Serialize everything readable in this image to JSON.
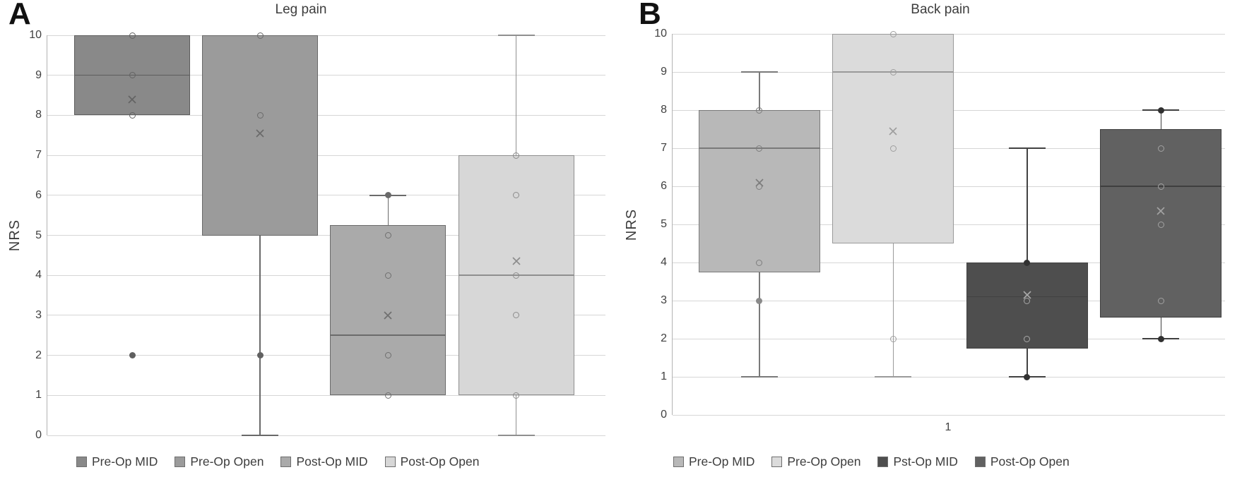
{
  "chart_data": [
    {
      "type": "box",
      "panel_label": "A",
      "title": "Leg pain",
      "ylabel": "NRS",
      "ylim": [
        0,
        10
      ],
      "yticks": [
        0,
        1,
        2,
        3,
        4,
        5,
        6,
        7,
        8,
        9,
        10
      ],
      "x_tick_labels": [],
      "grid": true,
      "grid_color": "#d6d6d6",
      "axis_color": "#b3b3b3",
      "text_color": "#404040",
      "legend_position": "bottom",
      "series": [
        {
          "name": "Pre-Op MID",
          "fill": "#898989",
          "line_color": "#5d5d5d",
          "marker_color": "#636363",
          "point_color": "#5f5f5f",
          "q1": 8,
          "median": 9,
          "q3": 10,
          "mean": 8.4,
          "whisker_low": null,
          "whisker_high": null,
          "points_open": [
            10,
            9,
            8
          ],
          "points_filled": [
            2
          ]
        },
        {
          "name": "Pre-Op Open",
          "fill": "#9b9b9b",
          "line_color": "#696969",
          "marker_color": "#6a6a6a",
          "point_color": "#616161",
          "q1": 5,
          "median": null,
          "q3": 10,
          "mean": 7.55,
          "whisker_low": 0,
          "whisker_high": null,
          "points_open": [
            10,
            8
          ],
          "points_filled": [
            2
          ]
        },
        {
          "name": "Post-Op MID",
          "fill": "#aaaaaa",
          "line_color": "#6b6b6b",
          "marker_color": "#6f6f6f",
          "point_color": "#6a6a6a",
          "q1": 1,
          "median": 2.5,
          "q3": 5.25,
          "mean": 3.0,
          "whisker_low": null,
          "whisker_high": 6,
          "points_open": [
            5,
            4,
            2,
            1
          ],
          "points_filled": [
            6
          ]
        },
        {
          "name": "Post-Op Open",
          "fill": "#d7d7d7",
          "line_color": "#8f8f8f",
          "marker_color": "#8c8c8c",
          "point_color": "#7a7a7a",
          "q1": 1,
          "median": 4,
          "q3": 7,
          "mean": 4.35,
          "whisker_low": 0,
          "whisker_high": 10,
          "points_open": [
            7,
            6,
            4,
            3,
            1
          ],
          "points_filled": []
        }
      ]
    },
    {
      "type": "box",
      "panel_label": "B",
      "title": "Back pain",
      "ylabel": "NRS",
      "ylim": [
        0,
        10
      ],
      "yticks": [
        0,
        1,
        2,
        3,
        4,
        5,
        6,
        7,
        8,
        9,
        10
      ],
      "x_tick_labels": [
        "1"
      ],
      "grid": true,
      "grid_color": "#d6d6d6",
      "axis_color": "#b3b3b3",
      "text_color": "#404040",
      "legend_position": "bottom",
      "series": [
        {
          "name": "Pre-Op MID",
          "fill": "#b8b8b8",
          "line_color": "#7a7a7a",
          "marker_color": "#7d7d7d",
          "point_color": "#8a8a8a",
          "q1": 3.75,
          "median": 7,
          "q3": 8,
          "mean": 6.1,
          "whisker_low": 1,
          "whisker_high": 9,
          "points_open": [
            8,
            7,
            6,
            4
          ],
          "points_filled": [
            3
          ]
        },
        {
          "name": "Pre-Op Open",
          "fill": "#dbdbdb",
          "line_color": "#9a9a9a",
          "marker_color": "#9e9e9e",
          "point_color": "#9e9e9e",
          "q1": 4.5,
          "median": 9,
          "q3": 10,
          "mean": 7.45,
          "whisker_low": 1,
          "whisker_high": null,
          "points_open": [
            10,
            9,
            7,
            2
          ],
          "points_filled": []
        },
        {
          "name": "Pst-Op MID",
          "fill": "#4e4e4e",
          "line_color": "#424242",
          "marker_color": "#a8a8a8",
          "point_color": "#323232",
          "q1": 1.75,
          "median": 3.1,
          "q3": 4,
          "mean": 3.15,
          "whisker_low": 1,
          "whisker_high": 7,
          "points_open": [
            3,
            2
          ],
          "points_filled": [
            4,
            1
          ]
        },
        {
          "name": "Post-Op Open",
          "fill": "#616161",
          "line_color": "#3f3f3f",
          "marker_color": "#a2a2a2",
          "point_color": "#303030",
          "q1": 2.55,
          "median": 6,
          "q3": 7.5,
          "mean": 5.35,
          "whisker_low": 2,
          "whisker_high": 8,
          "points_open": [
            7,
            6,
            5,
            3
          ],
          "points_filled": [
            8,
            2
          ]
        }
      ]
    }
  ]
}
